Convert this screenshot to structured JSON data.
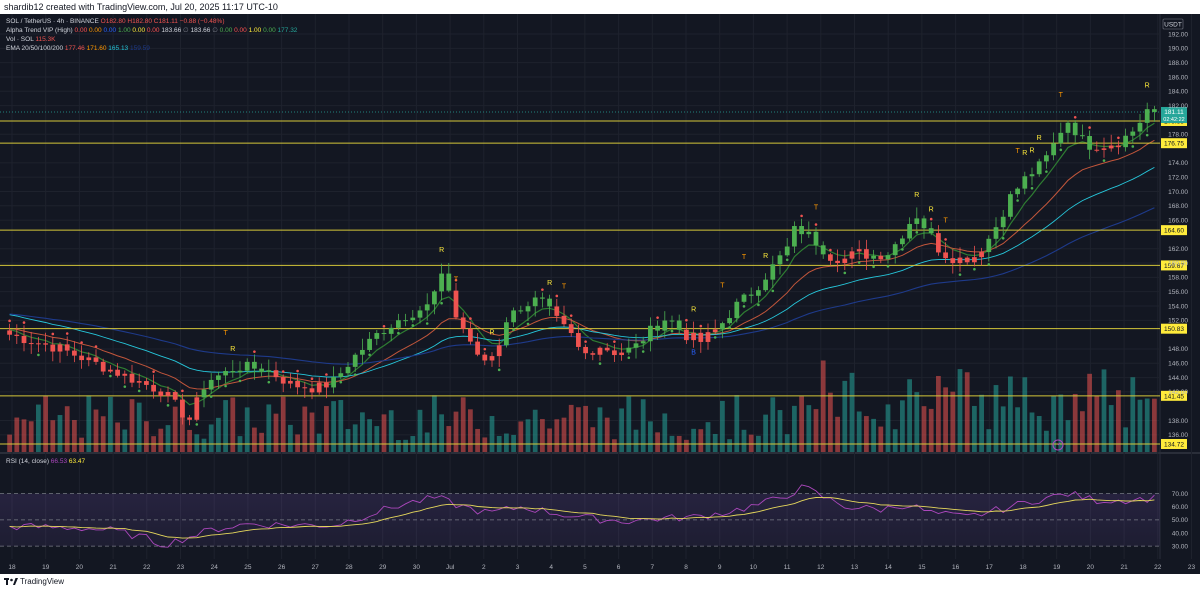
{
  "header": {
    "attribution": "shardib12 created with TradingView.com, Jul 20, 2025 11:17 UTC-10"
  },
  "footer": {
    "brand": "TradingView",
    "logo_icon": "tradingview-logo-icon"
  },
  "legend": {
    "symbol": "SOL / TetherUS · 4h · BINANCE",
    "ohlc": "O182.80 H182.80 C181.11 −0.88 (−0.48%)",
    "alpha_trend": {
      "label": "Alpha Trend VIP (High)",
      "values": [
        "0.00",
        "0.00",
        "0.00",
        "1.00",
        "0.00",
        "0.00",
        "183.66",
        "∅",
        "183.66",
        "∅",
        "0.00",
        "0.00",
        "1.00",
        "0.00",
        "177.32"
      ],
      "colors": [
        "#ff5252",
        "#ff9800",
        "#2962ff",
        "#4caf50",
        "#ffeb3b",
        "#ff5252",
        "#d1d4dc",
        "#787b86",
        "#d1d4dc",
        "#787b86",
        "#4caf50",
        "#ff5252",
        "#ffeb3b",
        "#4caf50",
        "#26a69a"
      ]
    },
    "volume": {
      "label": "Vol · SOL",
      "value": "115.3K",
      "color": "#ef5350"
    },
    "ema": {
      "label": "EMA 20/50/100/200",
      "values": [
        {
          "v": "177.46",
          "color": "#ef5350"
        },
        {
          "v": "171.60",
          "color": "#ff9800"
        },
        {
          "v": "165.13",
          "color": "#26c6da"
        },
        {
          "v": "159.59",
          "color": "#1e3a8a"
        }
      ]
    },
    "rsi": {
      "label": "RSI (14, close)",
      "values": [
        {
          "v": "66.53",
          "color": "#ab47bc"
        },
        {
          "v": "63.47",
          "color": "#ffeb3b"
        }
      ]
    }
  },
  "chart_data": {
    "type": "candlestick",
    "currency": "USDT",
    "price_axis": {
      "ticks": [
        192,
        190,
        188,
        186,
        184,
        182,
        178,
        174,
        172,
        170,
        168,
        166,
        162,
        160,
        158,
        156,
        154,
        152,
        148,
        146,
        144,
        142,
        138,
        136
      ],
      "range": [
        133.6,
        194.8
      ]
    },
    "x_axis": {
      "ticks": [
        "18",
        "19",
        "20",
        "21",
        "22",
        "23",
        "24",
        "25",
        "26",
        "27",
        "28",
        "29",
        "30",
        "Jul",
        "2",
        "3",
        "4",
        "5",
        "6",
        "7",
        "8",
        "9",
        "10",
        "11",
        "12",
        "13",
        "14",
        "15",
        "16",
        "17",
        "18",
        "19",
        "20",
        "21",
        "22",
        "23"
      ]
    },
    "horizontal_levels": [
      {
        "price": 179.85,
        "label": "179.85"
      },
      {
        "price": 176.75,
        "label": "176.75"
      },
      {
        "price": 164.6,
        "label": "164.60"
      },
      {
        "price": 159.67,
        "label": "159.67"
      },
      {
        "price": 150.83,
        "label": "150.83"
      },
      {
        "price": 141.45,
        "label": "141.45"
      },
      {
        "price": 134.72,
        "label": "134.72"
      }
    ],
    "last_price": {
      "price": 181.11,
      "label": "181.11",
      "countdown": "02:42:22"
    },
    "rsi_axis": {
      "ticks": [
        70,
        60,
        50,
        40,
        30
      ],
      "labels": [
        "70.00",
        "60.00",
        "50.00",
        "40.00",
        "30.00"
      ],
      "upper": 70,
      "mid": 50,
      "lower": 30
    },
    "annotation_markers": [
      "T",
      "R",
      "R",
      "T",
      "R",
      "R",
      "T",
      "R",
      "T",
      "T",
      "R",
      "T",
      "R",
      "R",
      "T",
      "T",
      "R",
      "R",
      "R",
      "T",
      "R",
      "B"
    ],
    "price_path": [
      [
        0,
        150.0
      ],
      [
        6,
        148.0
      ],
      [
        12,
        145.0
      ],
      [
        18,
        142.0
      ],
      [
        21,
        138.0
      ],
      [
        23,
        143.5
      ],
      [
        27,
        145.5
      ],
      [
        30,
        145.2
      ],
      [
        33,
        143.0
      ],
      [
        36,
        142.5
      ],
      [
        38,
        143.5
      ],
      [
        40,
        146.5
      ],
      [
        43,
        150.0
      ],
      [
        46,
        152.5
      ],
      [
        49,
        154.0
      ],
      [
        50,
        156.5
      ],
      [
        51,
        158.8
      ],
      [
        52,
        153.0
      ],
      [
        54,
        149.0
      ],
      [
        55,
        146.0
      ],
      [
        57,
        147.5
      ],
      [
        58,
        152.0
      ],
      [
        60,
        154.0
      ],
      [
        62,
        155.0
      ],
      [
        64,
        152.0
      ],
      [
        66,
        149.5
      ],
      [
        67,
        147.0
      ],
      [
        69,
        148.5
      ],
      [
        71,
        147.5
      ],
      [
        73,
        148.0
      ],
      [
        75,
        150.5
      ],
      [
        77,
        152.5
      ],
      [
        79,
        150.0
      ],
      [
        81,
        149.0
      ],
      [
        83,
        151.0
      ],
      [
        85,
        154.0
      ],
      [
        87,
        156.0
      ],
      [
        89,
        159.0
      ],
      [
        91,
        162.0
      ],
      [
        92,
        165.0
      ],
      [
        94,
        163.5
      ],
      [
        96,
        161.0
      ],
      [
        98,
        160.5
      ],
      [
        99,
        161.5
      ],
      [
        101,
        161.0
      ],
      [
        103,
        161.5
      ],
      [
        105,
        165.0
      ],
      [
        106,
        167.0
      ],
      [
        108,
        163.5
      ],
      [
        109,
        161.5
      ],
      [
        111,
        160.5
      ],
      [
        113,
        161.0
      ],
      [
        115,
        164.0
      ],
      [
        117,
        169.0
      ],
      [
        119,
        172.0
      ],
      [
        121,
        174.0
      ],
      [
        122,
        176.0
      ],
      [
        123,
        178.5
      ],
      [
        124,
        180.0
      ],
      [
        125,
        178.0
      ],
      [
        126,
        176.5
      ],
      [
        128,
        176.5
      ],
      [
        130,
        177.0
      ],
      [
        132,
        179.0
      ],
      [
        133,
        181.5
      ],
      [
        134,
        181.11
      ]
    ],
    "rsi_path": [
      [
        0,
        45
      ],
      [
        8,
        44
      ],
      [
        12,
        42
      ],
      [
        16,
        36
      ],
      [
        18,
        31
      ],
      [
        20,
        35
      ],
      [
        24,
        43
      ],
      [
        28,
        47
      ],
      [
        33,
        46
      ],
      [
        38,
        46
      ],
      [
        42,
        54
      ],
      [
        46,
        62
      ],
      [
        50,
        67
      ],
      [
        52,
        62
      ],
      [
        56,
        55
      ],
      [
        60,
        60
      ],
      [
        64,
        55
      ],
      [
        68,
        51
      ],
      [
        72,
        49
      ],
      [
        76,
        51
      ],
      [
        80,
        52
      ],
      [
        84,
        56
      ],
      [
        88,
        62
      ],
      [
        91,
        69
      ],
      [
        93,
        75
      ],
      [
        95,
        68
      ],
      [
        98,
        60
      ],
      [
        102,
        58
      ],
      [
        105,
        62
      ],
      [
        108,
        55
      ],
      [
        112,
        52
      ],
      [
        116,
        58
      ],
      [
        120,
        65
      ],
      [
        124,
        70
      ],
      [
        127,
        65
      ],
      [
        130,
        65
      ],
      [
        134,
        66.53
      ]
    ]
  }
}
